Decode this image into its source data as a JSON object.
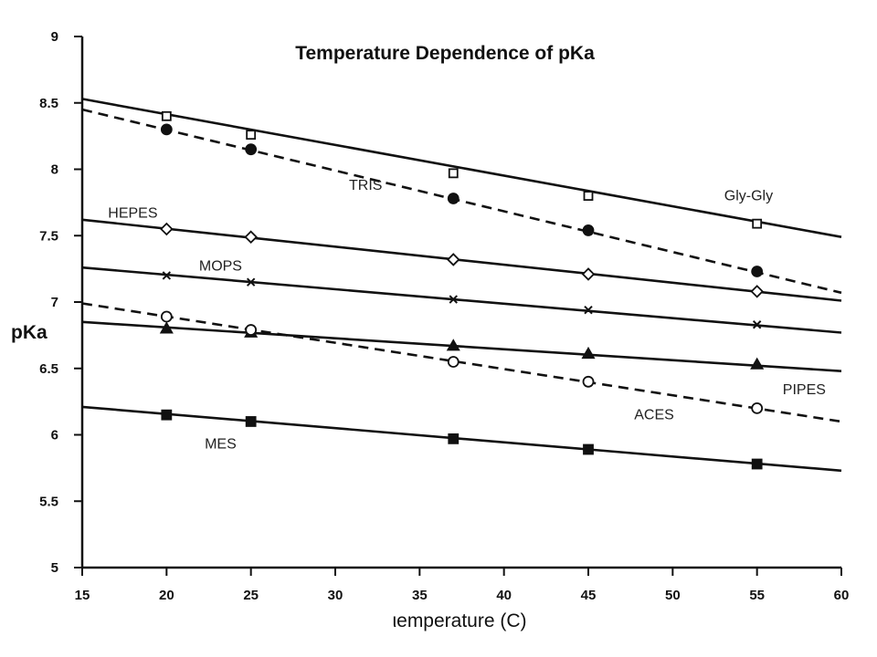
{
  "chart_data": {
    "type": "line",
    "title": "Temperature Dependence of pKa",
    "xlabel": "ιemperature (C)",
    "ylabel": "pKa",
    "xlim": [
      15,
      60
    ],
    "ylim": [
      5,
      9
    ],
    "xticks": [
      "15",
      "20",
      "25",
      "30",
      "35",
      "40",
      "45",
      "50",
      "55",
      "60"
    ],
    "yticks": [
      "5",
      "5.5",
      "6",
      "6.5",
      "7",
      "7.5",
      "8",
      "8.5",
      "9"
    ],
    "grid": false,
    "legend": "none",
    "series": [
      {
        "name": "Gly-Gly",
        "line": "solid",
        "marker": "open-square",
        "fit": {
          "x": [
            15,
            60
          ],
          "y": [
            8.53,
            7.49
          ]
        },
        "points": {
          "x": [
            20,
            25,
            37,
            45,
            55
          ],
          "y": [
            8.4,
            8.26,
            7.97,
            7.8,
            7.59
          ]
        }
      },
      {
        "name": "TRIS",
        "line": "dashed",
        "marker": "filled-circle",
        "fit": {
          "x": [
            15,
            60
          ],
          "y": [
            8.45,
            7.07
          ]
        },
        "points": {
          "x": [
            20,
            25,
            37,
            45,
            55
          ],
          "y": [
            8.3,
            8.15,
            7.78,
            7.54,
            7.23
          ]
        }
      },
      {
        "name": "HEPES",
        "line": "solid",
        "marker": "open-diamond",
        "fit": {
          "x": [
            15,
            60
          ],
          "y": [
            7.62,
            7.01
          ]
        },
        "points": {
          "x": [
            20,
            25,
            37,
            45,
            55
          ],
          "y": [
            7.55,
            7.49,
            7.32,
            7.21,
            7.08
          ]
        }
      },
      {
        "name": "MOPS",
        "line": "solid",
        "marker": "x",
        "fit": {
          "x": [
            15,
            60
          ],
          "y": [
            7.26,
            6.77
          ]
        },
        "points": {
          "x": [
            20,
            25,
            37,
            45,
            55
          ],
          "y": [
            7.2,
            7.15,
            7.02,
            6.94,
            6.83
          ]
        }
      },
      {
        "name": "PIPES",
        "line": "solid",
        "marker": "filled-triangle",
        "fit": {
          "x": [
            15,
            60
          ],
          "y": [
            6.85,
            6.48
          ]
        },
        "points": {
          "x": [
            20,
            25,
            37,
            45,
            55
          ],
          "y": [
            6.8,
            6.77,
            6.67,
            6.61,
            6.53
          ]
        }
      },
      {
        "name": "ACES",
        "line": "dashed",
        "marker": "open-circle",
        "fit": {
          "x": [
            15,
            60
          ],
          "y": [
            6.99,
            6.1
          ]
        },
        "points": {
          "x": [
            20,
            25,
            37,
            45,
            55
          ],
          "y": [
            6.89,
            6.79,
            6.55,
            6.4,
            6.2
          ]
        }
      },
      {
        "name": "MES",
        "line": "solid",
        "marker": "filled-square",
        "fit": {
          "x": [
            15,
            60
          ],
          "y": [
            6.21,
            5.73
          ]
        },
        "points": {
          "x": [
            20,
            25,
            37,
            45,
            55
          ],
          "y": [
            6.15,
            6.1,
            5.97,
            5.89,
            5.78
          ]
        }
      }
    ]
  }
}
